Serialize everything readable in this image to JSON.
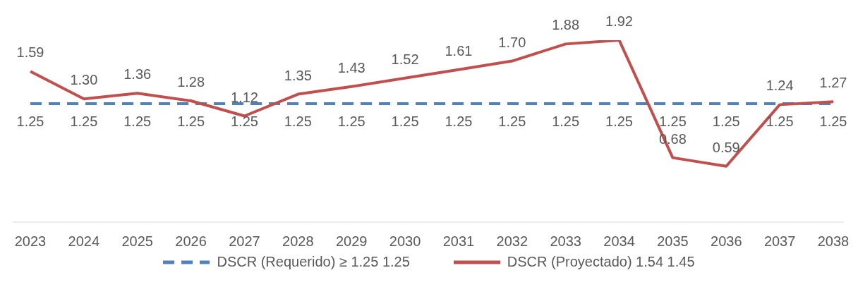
{
  "chart_data": {
    "type": "line",
    "categories": [
      "2023",
      "2024",
      "2025",
      "2026",
      "2027",
      "2028",
      "2029",
      "2030",
      "2031",
      "2032",
      "2033",
      "2034",
      "2035",
      "2036",
      "2037",
      "2038"
    ],
    "series": [
      {
        "name": "DSCR (Requerido) ≥ 1.25 1.25",
        "color": "#4f81bd",
        "line_style": "dashed",
        "values": [
          1.25,
          1.25,
          1.25,
          1.25,
          1.25,
          1.25,
          1.25,
          1.25,
          1.25,
          1.25,
          1.25,
          1.25,
          1.25,
          1.25,
          1.25,
          1.25
        ],
        "value_labels": [
          "1.25",
          "1.25",
          "1.25",
          "1.25",
          "1.25",
          "1.25",
          "1.25",
          "1.25",
          "1.25",
          "1.25",
          "1.25",
          "1.25",
          "1.25",
          "1.25",
          "1.25",
          "1.25"
        ]
      },
      {
        "name": "DSCR (Proyectado) 1.54 1.45",
        "color": "#c0504d",
        "line_style": "solid",
        "values": [
          1.59,
          1.3,
          1.36,
          1.28,
          1.12,
          1.35,
          1.43,
          1.52,
          1.61,
          1.7,
          1.88,
          1.92,
          0.68,
          0.59,
          1.24,
          1.27
        ],
        "value_labels": [
          "1.59",
          "1.30",
          "1.36",
          "1.28",
          "1.12",
          "1.35",
          "1.43",
          "1.52",
          "1.61",
          "1.70",
          "1.88",
          "1.92",
          "0.68",
          "0.59",
          "1.24",
          "1.27"
        ]
      }
    ],
    "grid": false,
    "legend": "bottom",
    "marker": "none"
  }
}
